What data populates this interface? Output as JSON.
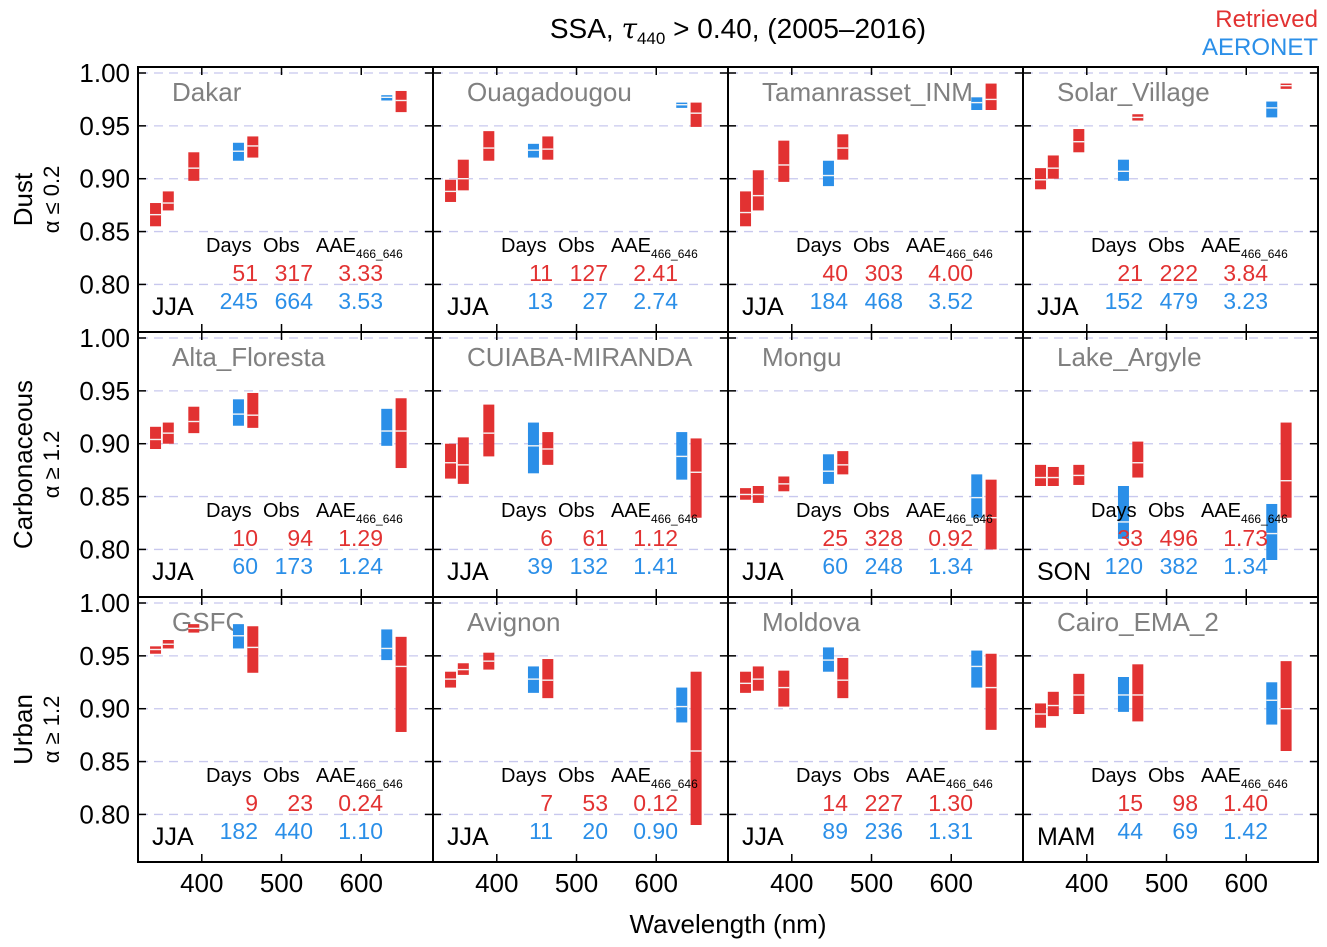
{
  "title": {
    "prefix": "SSA, ",
    "tau": "τ",
    "sub": "440",
    "suffix": " > 0.40, (2005–2016)"
  },
  "legend": [
    {
      "label": "Retrieved",
      "color": "#e23232"
    },
    {
      "label": "AERONET",
      "color": "#2b8fe8"
    }
  ],
  "colors": {
    "retrieved": "#e23232",
    "aeronet": "#2b8fe8",
    "site_label": "#808080",
    "grid": "#c8c8ee",
    "divider": "#f4f4f4"
  },
  "xlabel": "Wavelength (nm)",
  "x_ticks": [
    400,
    500,
    600
  ],
  "y_ticks": [
    "1.00",
    "0.95",
    "0.90",
    "0.85",
    "0.80"
  ],
  "row_labels": [
    {
      "main": "Dust",
      "sub": "α ≤ 0.2"
    },
    {
      "main": "Carbonaceous",
      "sub": "α ≥ 1.2"
    },
    {
      "main": "Urban",
      "sub": "α ≥ 1.2"
    }
  ],
  "stats_headers": {
    "days": "Days",
    "obs": "Obs",
    "aae": "AAE",
    "aae_sub": "466_646"
  },
  "chart_data": {
    "type": "boxplot",
    "xlim": [
      320,
      690
    ],
    "ylim": [
      0.755,
      1.0
    ],
    "panels": [
      {
        "site": "Dakar",
        "season": "JJA",
        "retrieved": {
          "days": "51",
          "obs": "317",
          "aae": "3.33"
        },
        "aeronet": {
          "days": "245",
          "obs": "664",
          "aae": "3.53"
        },
        "boxes": [
          {
            "s": "r",
            "x": 342,
            "lo": 0.855,
            "med": 0.866,
            "hi": 0.877
          },
          {
            "s": "r",
            "x": 358,
            "lo": 0.87,
            "med": 0.877,
            "hi": 0.888
          },
          {
            "s": "r",
            "x": 390,
            "lo": 0.898,
            "med": 0.91,
            "hi": 0.925
          },
          {
            "s": "a",
            "x": 446,
            "lo": 0.917,
            "med": 0.926,
            "hi": 0.934
          },
          {
            "s": "r",
            "x": 464,
            "lo": 0.92,
            "med": 0.931,
            "hi": 0.94
          },
          {
            "s": "a",
            "x": 632,
            "lo": 0.974,
            "med": 0.977,
            "hi": 0.979
          },
          {
            "s": "r",
            "x": 650,
            "lo": 0.963,
            "med": 0.974,
            "hi": 0.983
          }
        ]
      },
      {
        "site": "Ouagadougou",
        "season": "JJA",
        "retrieved": {
          "days": "11",
          "obs": "127",
          "aae": "2.41"
        },
        "aeronet": {
          "days": "13",
          "obs": "27",
          "aae": "2.74"
        },
        "boxes": [
          {
            "s": "r",
            "x": 342,
            "lo": 0.878,
            "med": 0.888,
            "hi": 0.899
          },
          {
            "s": "r",
            "x": 358,
            "lo": 0.889,
            "med": 0.9,
            "hi": 0.918
          },
          {
            "s": "r",
            "x": 390,
            "lo": 0.917,
            "med": 0.929,
            "hi": 0.945
          },
          {
            "s": "a",
            "x": 446,
            "lo": 0.92,
            "med": 0.927,
            "hi": 0.933
          },
          {
            "s": "r",
            "x": 464,
            "lo": 0.918,
            "med": 0.928,
            "hi": 0.94
          },
          {
            "s": "a",
            "x": 632,
            "lo": 0.967,
            "med": 0.97,
            "hi": 0.972
          },
          {
            "s": "r",
            "x": 650,
            "lo": 0.949,
            "med": 0.962,
            "hi": 0.972
          }
        ]
      },
      {
        "site": "Tamanrasset_INM",
        "season": "JJA",
        "retrieved": {
          "days": "40",
          "obs": "303",
          "aae": "4.00"
        },
        "aeronet": {
          "days": "184",
          "obs": "468",
          "aae": "3.52"
        },
        "boxes": [
          {
            "s": "r",
            "x": 342,
            "lo": 0.855,
            "med": 0.868,
            "hi": 0.888
          },
          {
            "s": "r",
            "x": 358,
            "lo": 0.87,
            "med": 0.884,
            "hi": 0.908
          },
          {
            "s": "r",
            "x": 390,
            "lo": 0.897,
            "med": 0.913,
            "hi": 0.936
          },
          {
            "s": "a",
            "x": 446,
            "lo": 0.893,
            "med": 0.903,
            "hi": 0.917
          },
          {
            "s": "r",
            "x": 464,
            "lo": 0.918,
            "med": 0.929,
            "hi": 0.942
          },
          {
            "s": "a",
            "x": 632,
            "lo": 0.965,
            "med": 0.972,
            "hi": 0.977
          },
          {
            "s": "r",
            "x": 650,
            "lo": 0.965,
            "med": 0.975,
            "hi": 0.99
          }
        ]
      },
      {
        "site": "Solar_Village",
        "season": "JJA",
        "retrieved": {
          "days": "21",
          "obs": "222",
          "aae": "3.84"
        },
        "aeronet": {
          "days": "152",
          "obs": "479",
          "aae": "3.23"
        },
        "boxes": [
          {
            "s": "r",
            "x": 342,
            "lo": 0.89,
            "med": 0.899,
            "hi": 0.91
          },
          {
            "s": "r",
            "x": 358,
            "lo": 0.9,
            "med": 0.91,
            "hi": 0.922
          },
          {
            "s": "r",
            "x": 390,
            "lo": 0.925,
            "med": 0.935,
            "hi": 0.947
          },
          {
            "s": "a",
            "x": 446,
            "lo": 0.898,
            "med": 0.907,
            "hi": 0.918
          },
          {
            "s": "r",
            "x": 464,
            "lo": 0.955,
            "med": 0.958,
            "hi": 0.961
          },
          {
            "s": "a",
            "x": 632,
            "lo": 0.958,
            "med": 0.967,
            "hi": 0.973
          },
          {
            "s": "r",
            "x": 650,
            "lo": 0.985,
            "med": 0.988,
            "hi": 0.99
          }
        ]
      },
      {
        "site": "Alta_Floresta",
        "season": "JJA",
        "retrieved": {
          "days": "10",
          "obs": "94",
          "aae": "1.29"
        },
        "aeronet": {
          "days": "60",
          "obs": "173",
          "aae": "1.24"
        },
        "boxes": [
          {
            "s": "r",
            "x": 342,
            "lo": 0.895,
            "med": 0.904,
            "hi": 0.916
          },
          {
            "s": "r",
            "x": 358,
            "lo": 0.9,
            "med": 0.91,
            "hi": 0.92
          },
          {
            "s": "r",
            "x": 390,
            "lo": 0.91,
            "med": 0.921,
            "hi": 0.935
          },
          {
            "s": "a",
            "x": 446,
            "lo": 0.917,
            "med": 0.928,
            "hi": 0.942
          },
          {
            "s": "r",
            "x": 464,
            "lo": 0.915,
            "med": 0.927,
            "hi": 0.948
          },
          {
            "s": "a",
            "x": 632,
            "lo": 0.898,
            "med": 0.912,
            "hi": 0.933
          },
          {
            "s": "r",
            "x": 650,
            "lo": 0.877,
            "med": 0.912,
            "hi": 0.943
          }
        ]
      },
      {
        "site": "CUIABA-MIRANDA",
        "season": "JJA",
        "retrieved": {
          "days": "6",
          "obs": "61",
          "aae": "1.12"
        },
        "aeronet": {
          "days": "39",
          "obs": "132",
          "aae": "1.41"
        },
        "boxes": [
          {
            "s": "r",
            "x": 342,
            "lo": 0.867,
            "med": 0.882,
            "hi": 0.9
          },
          {
            "s": "r",
            "x": 358,
            "lo": 0.862,
            "med": 0.88,
            "hi": 0.906
          },
          {
            "s": "r",
            "x": 390,
            "lo": 0.888,
            "med": 0.91,
            "hi": 0.937
          },
          {
            "s": "a",
            "x": 446,
            "lo": 0.872,
            "med": 0.898,
            "hi": 0.92
          },
          {
            "s": "r",
            "x": 464,
            "lo": 0.88,
            "med": 0.895,
            "hi": 0.911
          },
          {
            "s": "a",
            "x": 632,
            "lo": 0.866,
            "med": 0.888,
            "hi": 0.911
          },
          {
            "s": "r",
            "x": 650,
            "lo": 0.83,
            "med": 0.873,
            "hi": 0.905
          }
        ]
      },
      {
        "site": "Mongu",
        "season": "JJA",
        "retrieved": {
          "days": "25",
          "obs": "328",
          "aae": "0.92"
        },
        "aeronet": {
          "days": "60",
          "obs": "248",
          "aae": "1.34"
        },
        "boxes": [
          {
            "s": "r",
            "x": 342,
            "lo": 0.847,
            "med": 0.852,
            "hi": 0.858
          },
          {
            "s": "r",
            "x": 358,
            "lo": 0.844,
            "med": 0.852,
            "hi": 0.86
          },
          {
            "s": "r",
            "x": 390,
            "lo": 0.855,
            "med": 0.862,
            "hi": 0.869
          },
          {
            "s": "a",
            "x": 446,
            "lo": 0.862,
            "med": 0.874,
            "hi": 0.89
          },
          {
            "s": "r",
            "x": 464,
            "lo": 0.871,
            "med": 0.88,
            "hi": 0.893
          },
          {
            "s": "a",
            "x": 632,
            "lo": 0.83,
            "med": 0.849,
            "hi": 0.871
          },
          {
            "s": "r",
            "x": 650,
            "lo": 0.8,
            "med": 0.83,
            "hi": 0.866
          }
        ]
      },
      {
        "site": "Lake_Argyle",
        "season": "SON",
        "retrieved": {
          "days": "33",
          "obs": "496",
          "aae": "1.73"
        },
        "aeronet": {
          "days": "120",
          "obs": "382",
          "aae": "1.34"
        },
        "boxes": [
          {
            "s": "r",
            "x": 342,
            "lo": 0.86,
            "med": 0.868,
            "hi": 0.88
          },
          {
            "s": "r",
            "x": 358,
            "lo": 0.86,
            "med": 0.868,
            "hi": 0.878
          },
          {
            "s": "r",
            "x": 390,
            "lo": 0.861,
            "med": 0.87,
            "hi": 0.88
          },
          {
            "s": "a",
            "x": 446,
            "lo": 0.81,
            "med": 0.826,
            "hi": 0.86
          },
          {
            "s": "r",
            "x": 464,
            "lo": 0.868,
            "med": 0.882,
            "hi": 0.902
          },
          {
            "s": "a",
            "x": 632,
            "lo": 0.79,
            "med": 0.815,
            "hi": 0.843
          },
          {
            "s": "r",
            "x": 650,
            "lo": 0.83,
            "med": 0.865,
            "hi": 0.92
          }
        ]
      },
      {
        "site": "GSFC",
        "season": "JJA",
        "retrieved": {
          "days": "9",
          "obs": "23",
          "aae": "0.24"
        },
        "aeronet": {
          "days": "182",
          "obs": "440",
          "aae": "1.10"
        },
        "boxes": [
          {
            "s": "r",
            "x": 342,
            "lo": 0.952,
            "med": 0.956,
            "hi": 0.959
          },
          {
            "s": "r",
            "x": 358,
            "lo": 0.957,
            "med": 0.961,
            "hi": 0.965
          },
          {
            "s": "r",
            "x": 390,
            "lo": 0.972,
            "med": 0.976,
            "hi": 0.98
          },
          {
            "s": "a",
            "x": 446,
            "lo": 0.957,
            "med": 0.969,
            "hi": 0.98
          },
          {
            "s": "r",
            "x": 464,
            "lo": 0.934,
            "med": 0.958,
            "hi": 0.978
          },
          {
            "s": "a",
            "x": 632,
            "lo": 0.946,
            "med": 0.957,
            "hi": 0.975
          },
          {
            "s": "r",
            "x": 650,
            "lo": 0.878,
            "med": 0.94,
            "hi": 0.968
          }
        ]
      },
      {
        "site": "Avignon",
        "season": "JJA",
        "retrieved": {
          "days": "7",
          "obs": "53",
          "aae": "0.12"
        },
        "aeronet": {
          "days": "11",
          "obs": "20",
          "aae": "0.90"
        },
        "boxes": [
          {
            "s": "r",
            "x": 342,
            "lo": 0.92,
            "med": 0.928,
            "hi": 0.935
          },
          {
            "s": "r",
            "x": 358,
            "lo": 0.932,
            "med": 0.937,
            "hi": 0.943
          },
          {
            "s": "r",
            "x": 390,
            "lo": 0.937,
            "med": 0.945,
            "hi": 0.953
          },
          {
            "s": "a",
            "x": 446,
            "lo": 0.915,
            "med": 0.928,
            "hi": 0.94
          },
          {
            "s": "r",
            "x": 464,
            "lo": 0.91,
            "med": 0.927,
            "hi": 0.947
          },
          {
            "s": "a",
            "x": 632,
            "lo": 0.887,
            "med": 0.902,
            "hi": 0.92
          },
          {
            "s": "r",
            "x": 650,
            "lo": 0.79,
            "med": 0.86,
            "hi": 0.935
          }
        ]
      },
      {
        "site": "Moldova",
        "season": "JJA",
        "retrieved": {
          "days": "14",
          "obs": "227",
          "aae": "1.30"
        },
        "aeronet": {
          "days": "89",
          "obs": "236",
          "aae": "1.31"
        },
        "boxes": [
          {
            "s": "r",
            "x": 342,
            "lo": 0.915,
            "med": 0.924,
            "hi": 0.935
          },
          {
            "s": "r",
            "x": 358,
            "lo": 0.917,
            "med": 0.928,
            "hi": 0.94
          },
          {
            "s": "r",
            "x": 390,
            "lo": 0.902,
            "med": 0.92,
            "hi": 0.936
          },
          {
            "s": "a",
            "x": 446,
            "lo": 0.935,
            "med": 0.946,
            "hi": 0.958
          },
          {
            "s": "r",
            "x": 464,
            "lo": 0.91,
            "med": 0.927,
            "hi": 0.948
          },
          {
            "s": "a",
            "x": 632,
            "lo": 0.92,
            "med": 0.94,
            "hi": 0.955
          },
          {
            "s": "r",
            "x": 650,
            "lo": 0.88,
            "med": 0.92,
            "hi": 0.952
          }
        ]
      },
      {
        "site": "Cairo_EMA_2",
        "season": "MAM",
        "retrieved": {
          "days": "15",
          "obs": "98",
          "aae": "1.40"
        },
        "aeronet": {
          "days": "44",
          "obs": "69",
          "aae": "1.42"
        },
        "boxes": [
          {
            "s": "r",
            "x": 342,
            "lo": 0.882,
            "med": 0.895,
            "hi": 0.905
          },
          {
            "s": "r",
            "x": 358,
            "lo": 0.893,
            "med": 0.903,
            "hi": 0.916
          },
          {
            "s": "r",
            "x": 390,
            "lo": 0.895,
            "med": 0.913,
            "hi": 0.933
          },
          {
            "s": "a",
            "x": 446,
            "lo": 0.897,
            "med": 0.913,
            "hi": 0.93
          },
          {
            "s": "r",
            "x": 464,
            "lo": 0.888,
            "med": 0.913,
            "hi": 0.942
          },
          {
            "s": "a",
            "x": 632,
            "lo": 0.885,
            "med": 0.908,
            "hi": 0.925
          },
          {
            "s": "r",
            "x": 650,
            "lo": 0.86,
            "med": 0.9,
            "hi": 0.945
          }
        ]
      }
    ]
  }
}
